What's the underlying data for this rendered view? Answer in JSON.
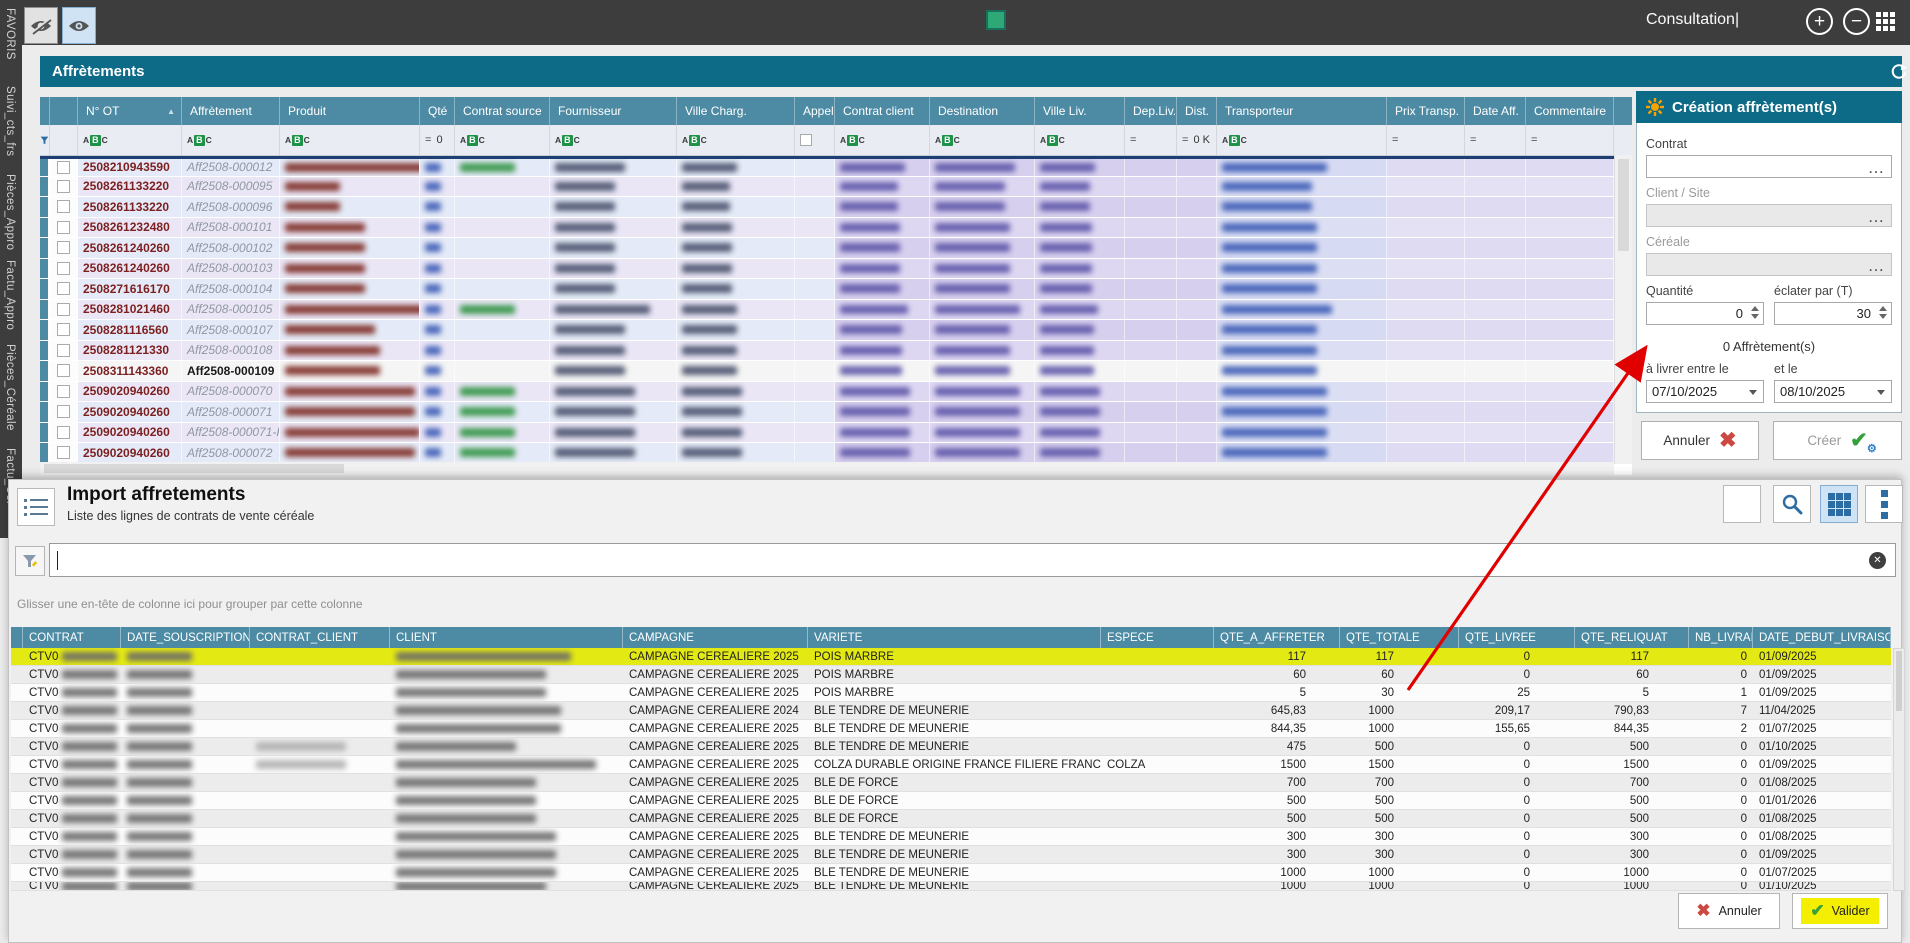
{
  "topbar": {
    "mode_label": "Consultation|"
  },
  "sidebar": {
    "tabs": [
      "FAVORIS",
      "Suivi_cts_frs",
      "Pièces_Appro",
      "Factu_Appro",
      "Pièces_Céréale",
      "Factu_Cér"
    ]
  },
  "aff_panel": {
    "title": "Affrètements",
    "columns": [
      "N° OT",
      "Affrètement",
      "Produit",
      "Qté",
      "Contrat source",
      "Fournisseur",
      "Ville Charg.",
      "Appel",
      "Contrat client",
      "Destination",
      "Ville Liv.",
      "Dep.Liv.",
      "Dist.",
      "Transporteur",
      "Prix Transp.",
      "Date Aff.",
      "Commentaire"
    ],
    "filter": {
      "equals": "=",
      "qte_value": "0",
      "dist_value": "0 K"
    },
    "rows": [
      {
        "ot": "2508210943590",
        "aff": "Aff2508-000012",
        "selected": false
      },
      {
        "ot": "2508261133220",
        "aff": "Aff2508-000095",
        "selected": false
      },
      {
        "ot": "2508261133220",
        "aff": "Aff2508-000096",
        "selected": false
      },
      {
        "ot": "2508261232480",
        "aff": "Aff2508-000101",
        "selected": false
      },
      {
        "ot": "2508261240260",
        "aff": "Aff2508-000102",
        "selected": false
      },
      {
        "ot": "2508261240260",
        "aff": "Aff2508-000103",
        "selected": false
      },
      {
        "ot": "2508271616170",
        "aff": "Aff2508-000104",
        "selected": false
      },
      {
        "ot": "2508281021460",
        "aff": "Aff2508-000105",
        "selected": false
      },
      {
        "ot": "2508281116560",
        "aff": "Aff2508-000107",
        "selected": false
      },
      {
        "ot": "2508281121330",
        "aff": "Aff2508-000108",
        "selected": false
      },
      {
        "ot": "2508311143360",
        "aff": "Aff2508-000109",
        "selected": true
      },
      {
        "ot": "2509020940260",
        "aff": "Aff2508-000070",
        "selected": false
      },
      {
        "ot": "2509020940260",
        "aff": "Aff2508-000071",
        "selected": false
      },
      {
        "ot": "2509020940260",
        "aff": "Aff2508-000071-R",
        "selected": false
      },
      {
        "ot": "2509020940260",
        "aff": "Aff2508-000072",
        "selected": false
      }
    ]
  },
  "creation_panel": {
    "title": "Création affrètement(s)",
    "contrat_label": "Contrat",
    "client_label": "Client / Site",
    "cereale_label": "Céréale",
    "quantite_label": "Quantité",
    "quantite_value": "0",
    "eclater_label": "éclater par (T)",
    "eclater_value": "30",
    "count_label": "0 Affrètement(s)",
    "from_label": "à livrer entre le",
    "to_label": "et le",
    "from_value": "07/10/2025",
    "to_value": "08/10/2025",
    "cancel_label": "Annuler",
    "create_label": "Créer"
  },
  "import_panel": {
    "title": "Import affretements",
    "subtitle": "Liste des lignes de contrats de vente céréale",
    "group_hint": "Glisser une en-tête de colonne ici pour grouper par cette colonne",
    "columns": [
      "CONTRAT",
      "DATE_SOUSCRIPTION",
      "CONTRAT_CLIENT",
      "CLIENT",
      "CAMPAGNE",
      "VARIETE",
      "ESPECE",
      "QTE_A_AFFRETER",
      "QTE_TOTALE",
      "QTE_LIVREE",
      "QTE_RELIQUAT",
      "NB_LIVRAI",
      "DATE_DEBUT_LIVRAISON"
    ],
    "rows": [
      {
        "contrat": "CTV0",
        "campagne": "CAMPAGNE CEREALIERE 2025",
        "variete": "POIS MARBRE",
        "espece": "",
        "qte_a_affreter": "117",
        "qte_totale": "117",
        "qte_livree": "0",
        "qte_reliquat": "117",
        "nb_livrai": "0",
        "date_debut": "01/09/2025",
        "highlight": true,
        "partial": false
      },
      {
        "contrat": "CTV0",
        "campagne": "CAMPAGNE CEREALIERE 2025",
        "variete": "POIS MARBRE",
        "espece": "",
        "qte_a_affreter": "60",
        "qte_totale": "60",
        "qte_livree": "0",
        "qte_reliquat": "60",
        "nb_livrai": "0",
        "date_debut": "01/09/2025",
        "highlight": false,
        "partial": false
      },
      {
        "contrat": "CTV0",
        "campagne": "CAMPAGNE CEREALIERE 2025",
        "variete": "POIS MARBRE",
        "espece": "",
        "qte_a_affreter": "5",
        "qte_totale": "30",
        "qte_livree": "25",
        "qte_reliquat": "5",
        "nb_livrai": "1",
        "date_debut": "01/09/2025",
        "highlight": false,
        "partial": false
      },
      {
        "contrat": "CTV0",
        "campagne": "CAMPAGNE CEREALIERE 2024",
        "variete": "BLE TENDRE DE MEUNERIE",
        "espece": "",
        "qte_a_affreter": "645,83",
        "qte_totale": "1000",
        "qte_livree": "209,17",
        "qte_reliquat": "790,83",
        "nb_livrai": "7",
        "date_debut": "11/04/2025",
        "highlight": false,
        "partial": false
      },
      {
        "contrat": "CTV0",
        "campagne": "CAMPAGNE CEREALIERE 2025",
        "variete": "BLE TENDRE DE MEUNERIE",
        "espece": "",
        "qte_a_affreter": "844,35",
        "qte_totale": "1000",
        "qte_livree": "155,65",
        "qte_reliquat": "844,35",
        "nb_livrai": "2",
        "date_debut": "01/07/2025",
        "highlight": false,
        "partial": false
      },
      {
        "contrat": "CTV0",
        "campagne": "CAMPAGNE CEREALIERE 2025",
        "variete": "BLE TENDRE DE MEUNERIE",
        "espece": "",
        "qte_a_affreter": "475",
        "qte_totale": "500",
        "qte_livree": "0",
        "qte_reliquat": "500",
        "nb_livrai": "0",
        "date_debut": "01/10/2025",
        "highlight": false,
        "partial": false
      },
      {
        "contrat": "CTV0",
        "campagne": "CAMPAGNE CEREALIERE 2025",
        "variete": "COLZA DURABLE ORIGINE FRANCE FILIERE FRANCE",
        "espece": "COLZA",
        "qte_a_affreter": "1500",
        "qte_totale": "1500",
        "qte_livree": "0",
        "qte_reliquat": "1500",
        "nb_livrai": "0",
        "date_debut": "01/09/2025",
        "highlight": false,
        "partial": false
      },
      {
        "contrat": "CTV0",
        "campagne": "CAMPAGNE CEREALIERE 2025",
        "variete": "BLE DE FORCE",
        "espece": "",
        "qte_a_affreter": "700",
        "qte_totale": "700",
        "qte_livree": "0",
        "qte_reliquat": "700",
        "nb_livrai": "0",
        "date_debut": "01/08/2025",
        "highlight": false,
        "partial": false
      },
      {
        "contrat": "CTV0",
        "campagne": "CAMPAGNE CEREALIERE 2025",
        "variete": "BLE DE FORCE",
        "espece": "",
        "qte_a_affreter": "500",
        "qte_totale": "500",
        "qte_livree": "0",
        "qte_reliquat": "500",
        "nb_livrai": "0",
        "date_debut": "01/01/2026",
        "highlight": false,
        "partial": false
      },
      {
        "contrat": "CTV0",
        "campagne": "CAMPAGNE CEREALIERE 2025",
        "variete": "BLE DE FORCE",
        "espece": "",
        "qte_a_affreter": "500",
        "qte_totale": "500",
        "qte_livree": "0",
        "qte_reliquat": "500",
        "nb_livrai": "0",
        "date_debut": "01/08/2025",
        "highlight": false,
        "partial": false
      },
      {
        "contrat": "CTV0",
        "campagne": "CAMPAGNE CEREALIERE 2025",
        "variete": "BLE TENDRE DE MEUNERIE",
        "espece": "",
        "qte_a_affreter": "300",
        "qte_totale": "300",
        "qte_livree": "0",
        "qte_reliquat": "300",
        "nb_livrai": "0",
        "date_debut": "01/08/2025",
        "highlight": false,
        "partial": false
      },
      {
        "contrat": "CTV0",
        "campagne": "CAMPAGNE CEREALIERE 2025",
        "variete": "BLE TENDRE DE MEUNERIE",
        "espece": "",
        "qte_a_affreter": "300",
        "qte_totale": "300",
        "qte_livree": "0",
        "qte_reliquat": "300",
        "nb_livrai": "0",
        "date_debut": "01/09/2025",
        "highlight": false,
        "partial": false
      },
      {
        "contrat": "CTV0",
        "campagne": "CAMPAGNE CEREALIERE 2025",
        "variete": "BLE TENDRE DE MEUNERIE",
        "espece": "",
        "qte_a_affreter": "1000",
        "qte_totale": "1000",
        "qte_livree": "0",
        "qte_reliquat": "1000",
        "nb_livrai": "0",
        "date_debut": "01/07/2025",
        "highlight": false,
        "partial": false
      },
      {
        "contrat": "CTV0",
        "campagne": "CAMPAGNE CEREALIERE 2025",
        "variete": "BLE TENDRE DE MEUNERIE",
        "espece": "",
        "qte_a_affreter": "1000",
        "qte_totale": "1000",
        "qte_livree": "0",
        "qte_reliquat": "1000",
        "nb_livrai": "0",
        "date_debut": "01/10/2025",
        "highlight": false,
        "partial": true
      }
    ],
    "cancel_label": "Annuler",
    "validate_label": "Valider"
  },
  "colors": {
    "teal_dark": "#0e6b88",
    "teal_header": "#4d8ba4",
    "yellow_highlight": "#e3e912",
    "valid_yellow": "#f4ef00",
    "arrow_red": "#e10000",
    "ot_number_red": "#7c1f1f"
  }
}
